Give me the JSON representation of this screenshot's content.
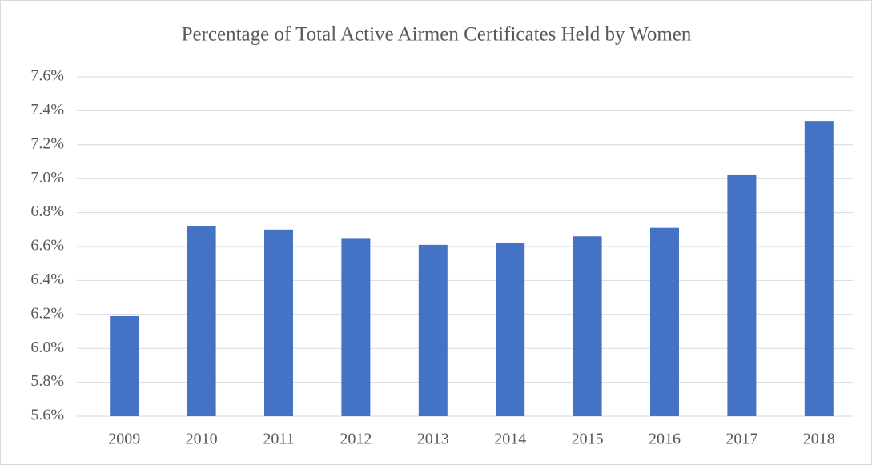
{
  "chart_data": {
    "type": "bar",
    "title": "Percentage of Total Active Airmen Certificates Held by Women",
    "categories": [
      "2009",
      "2010",
      "2011",
      "2012",
      "2013",
      "2014",
      "2015",
      "2016",
      "2017",
      "2018"
    ],
    "values": [
      6.19,
      6.72,
      6.7,
      6.65,
      6.61,
      6.62,
      6.66,
      6.71,
      7.02,
      7.34
    ],
    "color": "#4472c4",
    "ylim": [
      5.6,
      7.6
    ],
    "yticks": [
      {
        "value": 5.6,
        "label": "5.6%"
      },
      {
        "value": 5.8,
        "label": "5.8%"
      },
      {
        "value": 6.0,
        "label": "6.0%"
      },
      {
        "value": 6.2,
        "label": "6.2%"
      },
      {
        "value": 6.4,
        "label": "6.4%"
      },
      {
        "value": 6.6,
        "label": "6.6%"
      },
      {
        "value": 6.8,
        "label": "6.8%"
      },
      {
        "value": 7.0,
        "label": "7.0%"
      },
      {
        "value": 7.2,
        "label": "7.2%"
      },
      {
        "value": 7.4,
        "label": "7.4%"
      },
      {
        "value": 7.6,
        "label": "7.6%"
      }
    ],
    "grid": true
  }
}
